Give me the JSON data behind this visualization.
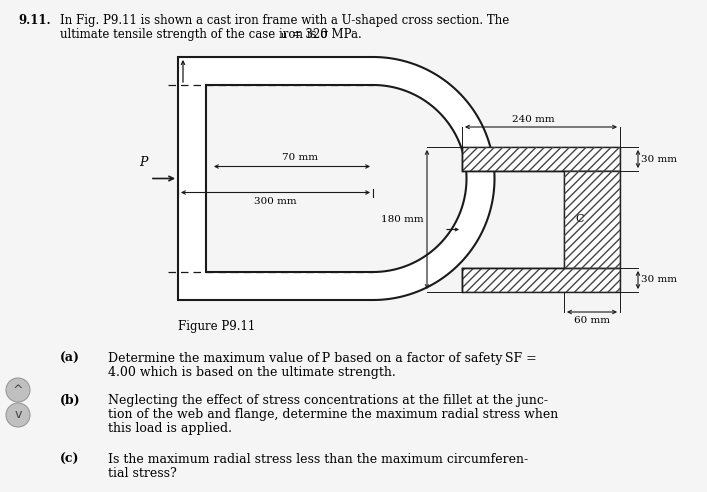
{
  "page_bg": "#f5f5f5",
  "frame_color": "#1a1a1a",
  "hatch_color": "#444444",
  "title_number": "9.11.",
  "title_line1": "In Fig. P9.11 is shown a cast iron frame with a U-shaped cross section. The",
  "title_line2_pre": "ultimate tensile strength of the case iron is σ",
  "title_line2_sub": "u",
  "title_line2_post": " = 320 MPa.",
  "figure_label": "Figure P9.11",
  "dim_70": "70 mm",
  "dim_300": "300 mm",
  "dim_240": "240 mm",
  "dim_30a": "30 mm",
  "dim_180": "180 mm",
  "dim_60": "60 mm",
  "dim_30b": "30 mm",
  "label_P": "P",
  "label_C": "C",
  "qa_label": "(a)",
  "qa_text1": "Determine the maximum value of P based on a factor of safety SF =",
  "qa_text2": "4.00 which is based on the ultimate strength.",
  "qb_label": "(b)",
  "qb_text1": "Neglecting the effect of stress concentrations at the fillet at the junc-",
  "qb_text2": "tion of the web and flange, determine the maximum radial stress when",
  "qb_text3": "this load is applied.",
  "qc_label": "(c)",
  "qc_text1": "Is the maximum radial stress less than the maximum circumferen-",
  "qc_text2": "tial stress?"
}
